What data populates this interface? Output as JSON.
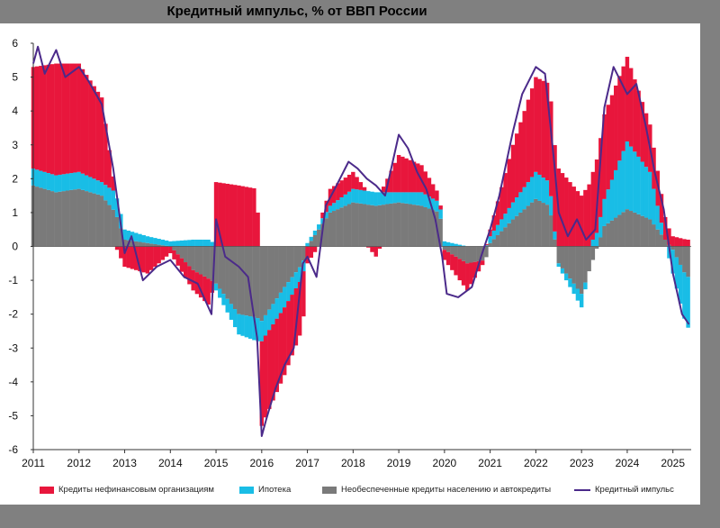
{
  "chart_data": {
    "type": "bar",
    "title": "Кредитный импульс, % от ВВП России",
    "xlabel": "",
    "ylabel": "",
    "ylim": [
      -6,
      6
    ],
    "yticks": [
      6,
      5,
      4,
      3,
      2,
      1,
      0,
      -1,
      -2,
      -3,
      -4,
      -5,
      -6
    ],
    "xlim": [
      2011.0,
      2025.4
    ],
    "xticks": [
      2011,
      2012,
      2013,
      2014,
      2015,
      2016,
      2017,
      2018,
      2019,
      2020,
      2021,
      2022,
      2023,
      2024,
      2025
    ],
    "stacked": true,
    "grid": false,
    "legend_position": "bottom",
    "series": [
      {
        "name": "Кредиты нефинансовым организациям",
        "kind": "bar",
        "color": "#e8163c",
        "x": [
          2011.0,
          2011.5,
          2012.0,
          2012.5,
          2012.8,
          2013.0,
          2013.5,
          2014.0,
          2014.5,
          2014.9,
          2015.0,
          2015.5,
          2015.9,
          2016.0,
          2016.5,
          2016.9,
          2017.0,
          2017.5,
          2018.0,
          2018.5,
          2019.0,
          2019.5,
          2019.9,
          2020.0,
          2020.5,
          2020.9,
          2021.0,
          2021.5,
          2022.0,
          2022.3,
          2022.5,
          2023.0,
          2023.5,
          2024.0,
          2024.5,
          2025.0,
          2025.3
        ],
        "values": [
          3.0,
          3.3,
          3.2,
          2.5,
          0.0,
          -0.6,
          -0.8,
          -0.2,
          -0.6,
          -0.8,
          1.9,
          1.8,
          1.7,
          -2.5,
          -2.0,
          -1.5,
          -0.5,
          0.5,
          0.5,
          -0.3,
          1.1,
          0.8,
          0.2,
          -0.3,
          -0.8,
          0.0,
          0.2,
          1.7,
          2.8,
          2.9,
          2.3,
          1.5,
          2.5,
          2.5,
          1.4,
          0.3,
          0.2
        ]
      },
      {
        "name": "Ипотека",
        "kind": "bar",
        "color": "#19bde6",
        "x": [
          2011.0,
          2011.5,
          2012.0,
          2012.5,
          2012.8,
          2013.0,
          2013.5,
          2014.0,
          2014.5,
          2014.9,
          2015.0,
          2015.5,
          2015.9,
          2016.0,
          2016.5,
          2016.9,
          2017.0,
          2017.5,
          2018.0,
          2018.5,
          2019.0,
          2019.5,
          2019.9,
          2020.0,
          2020.5,
          2020.9,
          2021.0,
          2021.5,
          2022.0,
          2022.3,
          2022.5,
          2023.0,
          2023.5,
          2024.0,
          2024.5,
          2025.0,
          2025.3
        ],
        "values": [
          0.5,
          0.5,
          0.5,
          0.4,
          0.6,
          0.3,
          0.2,
          0.15,
          0.2,
          0.2,
          -0.2,
          -0.6,
          -0.7,
          -0.6,
          -0.6,
          -0.4,
          0.1,
          0.2,
          0.4,
          0.4,
          0.3,
          0.4,
          0.3,
          0.15,
          0.0,
          0.0,
          0.2,
          0.5,
          0.8,
          0.7,
          -0.1,
          -0.4,
          0.8,
          2.0,
          1.4,
          -0.7,
          -1.5
        ]
      },
      {
        "name": "Необеспеченные кредиты населению и автокредиты",
        "kind": "bar",
        "color": "#7a7a7a",
        "x": [
          2011.0,
          2011.5,
          2012.0,
          2012.5,
          2012.8,
          2013.0,
          2013.5,
          2014.0,
          2014.5,
          2014.9,
          2015.0,
          2015.5,
          2015.9,
          2016.0,
          2016.5,
          2016.9,
          2017.0,
          2017.5,
          2018.0,
          2018.5,
          2019.0,
          2019.5,
          2019.9,
          2020.0,
          2020.5,
          2020.9,
          2021.0,
          2021.5,
          2022.0,
          2022.3,
          2022.5,
          2023.0,
          2023.5,
          2024.0,
          2024.5,
          2025.0,
          2025.3
        ],
        "values": [
          1.8,
          1.6,
          1.7,
          1.5,
          1.0,
          0.2,
          0.1,
          0.0,
          -0.7,
          -1.0,
          -1.1,
          -2.0,
          -2.1,
          -2.2,
          -1.2,
          -0.5,
          0.0,
          1.0,
          1.3,
          1.2,
          1.3,
          1.2,
          1.0,
          -0.1,
          -0.5,
          -0.4,
          0.1,
          0.8,
          1.4,
          1.2,
          -0.5,
          -1.4,
          0.6,
          1.1,
          0.8,
          -0.1,
          -0.9
        ]
      },
      {
        "name": "Кредитный импульс",
        "kind": "line",
        "color": "#4b2a8a",
        "x": [
          2011.0,
          2011.1,
          2011.25,
          2011.5,
          2011.7,
          2012.0,
          2012.2,
          2012.5,
          2012.75,
          2013.0,
          2013.15,
          2013.4,
          2013.7,
          2014.0,
          2014.3,
          2014.6,
          2014.8,
          2014.9,
          2015.0,
          2015.2,
          2015.5,
          2015.7,
          2015.9,
          2016.0,
          2016.1,
          2016.3,
          2016.5,
          2016.7,
          2016.9,
          2017.0,
          2017.2,
          2017.4,
          2017.6,
          2017.9,
          2018.1,
          2018.3,
          2018.5,
          2018.7,
          2019.0,
          2019.2,
          2019.4,
          2019.6,
          2019.8,
          2019.95,
          2020.05,
          2020.3,
          2020.6,
          2020.8,
          2021.0,
          2021.2,
          2021.5,
          2021.7,
          2022.0,
          2022.2,
          2022.4,
          2022.5,
          2022.7,
          2022.9,
          2023.1,
          2023.3,
          2023.5,
          2023.7,
          2024.0,
          2024.2,
          2024.4,
          2024.6,
          2024.8,
          2025.0,
          2025.2,
          2025.35
        ],
        "values": [
          5.4,
          5.9,
          5.1,
          5.8,
          5.0,
          5.3,
          4.9,
          4.2,
          2.3,
          -0.2,
          0.3,
          -1.0,
          -0.6,
          -0.4,
          -0.9,
          -1.1,
          -1.7,
          -2.0,
          0.8,
          -0.3,
          -0.6,
          -0.9,
          -2.7,
          -5.6,
          -5.1,
          -4.2,
          -3.5,
          -3.0,
          -0.5,
          -0.3,
          -0.9,
          1.2,
          1.7,
          2.5,
          2.3,
          2.0,
          1.8,
          1.5,
          3.3,
          2.9,
          2.2,
          1.7,
          0.8,
          -0.3,
          -1.4,
          -1.5,
          -1.2,
          -0.3,
          0.5,
          1.5,
          3.4,
          4.5,
          5.3,
          5.1,
          2.5,
          1.0,
          0.3,
          0.8,
          0.2,
          0.5,
          4.1,
          5.3,
          4.5,
          4.8,
          3.6,
          2.2,
          1.1,
          -0.8,
          -2.0,
          -2.3
        ]
      }
    ]
  },
  "legend": {
    "items": [
      {
        "label": "Кредиты нефинансовым организациям",
        "color": "#e8163c",
        "kind": "bar"
      },
      {
        "label": "Ипотека",
        "color": "#19bde6",
        "kind": "bar"
      },
      {
        "label": "Необеспеченные кредиты населению и автокредиты",
        "color": "#7a7a7a",
        "kind": "bar"
      },
      {
        "label": "Кредитный импульс",
        "color": "#4b2a8a",
        "kind": "line"
      }
    ]
  }
}
